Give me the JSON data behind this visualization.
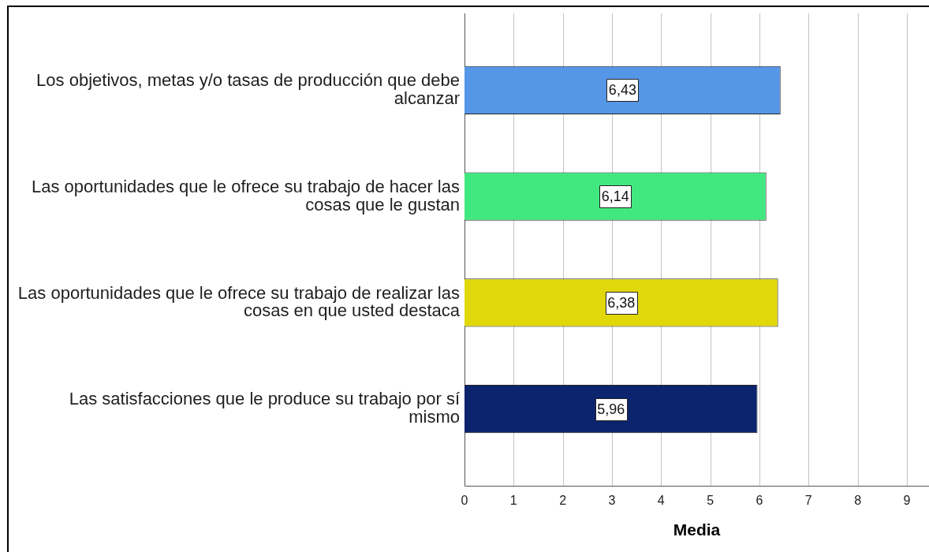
{
  "chart_data": {
    "type": "bar",
    "orientation": "horizontal",
    "xlabel": "Media",
    "categories": [
      "Los objetivos, metas y/o tasas de producción que debe alcanzar",
      "Las oportunidades que le ofrece su trabajo de hacer las cosas que le gustan",
      "Las oportunidades que le ofrece su trabajo de realizar las cosas en que usted destaca",
      "Las satisfacciones que le produce su trabajo por sí mismo"
    ],
    "values": [
      6.43,
      6.14,
      6.38,
      5.96
    ],
    "colors": [
      "#5596e6",
      "#41e87f",
      "#e1d80c",
      "#0b246d"
    ],
    "value_labels": [
      "6,43",
      "6,14",
      "6,38",
      "5,96"
    ],
    "xlim": [
      0,
      9.45
    ],
    "xticks": [
      0,
      1,
      2,
      3,
      4,
      5,
      6,
      7,
      8,
      9
    ],
    "grid": "x"
  }
}
